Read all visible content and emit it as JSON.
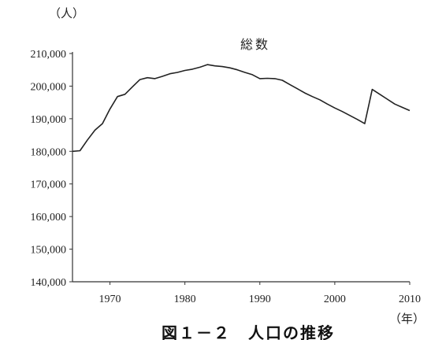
{
  "chart_data": {
    "type": "line",
    "title": "",
    "caption": "図１－２　人口の推移",
    "ylabel": "（人）",
    "xlabel": "（年）",
    "series": [
      {
        "name": "総数",
        "x": [
          1965,
          1966,
          1967,
          1968,
          1969,
          1970,
          1971,
          1972,
          1973,
          1974,
          1975,
          1976,
          1977,
          1978,
          1979,
          1980,
          1981,
          1982,
          1983,
          1984,
          1985,
          1986,
          1987,
          1988,
          1989,
          1990,
          1991,
          1992,
          1993,
          1994,
          1995,
          1996,
          1997,
          1998,
          1999,
          2000,
          2001,
          2002,
          2003,
          2004,
          2005,
          2006,
          2007,
          2008,
          2009,
          2010
        ],
        "values": [
          180000,
          180200,
          183500,
          186500,
          188500,
          193000,
          196800,
          197500,
          199800,
          202000,
          202600,
          202300,
          203000,
          203800,
          204200,
          204800,
          205200,
          205800,
          206600,
          206200,
          206000,
          205600,
          205000,
          204200,
          203500,
          202300,
          202400,
          202300,
          201800,
          200500,
          199200,
          197900,
          196800,
          195800,
          194500,
          193300,
          192200,
          191000,
          189800,
          188500,
          199000,
          197500,
          196000,
          194500,
          193500,
          192500
        ]
      }
    ],
    "ylim": [
      140000,
      210000
    ],
    "xlim": [
      1965,
      2010
    ],
    "yticks": [
      140000,
      150000,
      160000,
      170000,
      180000,
      190000,
      200000,
      210000
    ],
    "ytick_labels": [
      "140,000",
      "150,000",
      "160,000",
      "170,000",
      "180,000",
      "190,000",
      "200,000",
      "210,000"
    ],
    "xticks": [
      1970,
      1980,
      1990,
      2000,
      2010
    ],
    "xtick_labels": [
      "1970",
      "1980",
      "1990",
      "2000",
      "2010"
    ],
    "grid": false,
    "legend": "none",
    "line_color": "#222222"
  }
}
